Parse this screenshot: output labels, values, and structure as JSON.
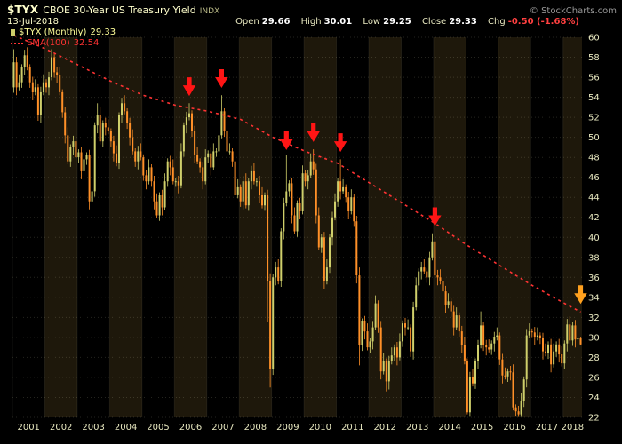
{
  "header": {
    "symbol": "$TYX",
    "name": "CBOE 30-Year US Treasury Yield",
    "exchange": "INDX",
    "date": "13-Jul-2018",
    "copyright": "© StockCharts.com",
    "quote": {
      "open_label": "Open",
      "open": "29.66",
      "high_label": "High",
      "high": "30.01",
      "low_label": "Low",
      "low": "29.25",
      "close_label": "Close",
      "close": "29.33",
      "chg_label": "Chg",
      "chg": "-0.50 (-1.68%)"
    }
  },
  "legend": {
    "series_label": "$TYX (Monthly)",
    "series_value": "29.33",
    "ema_label": "EMA(100)",
    "ema_value": "32.54"
  },
  "colors": {
    "background": "#000000",
    "band": "#1e180b",
    "grid": "rgba(232,232,192,0.16)",
    "candle_up": "#cfcf6b",
    "candle_down": "#ff9028",
    "ema": "#ff3333",
    "arrow_red": "#ff1515",
    "arrow_orange": "#ffa01e",
    "axis_text": "#e8e8c0"
  },
  "chart_data": {
    "type": "candlestick",
    "title": "$TYX CBOE 30-Year US Treasury Yield INDX",
    "timeframe": "Monthly",
    "legend_entries": [
      "$TYX (Monthly) 29.33",
      "EMA(100) 32.54"
    ],
    "ylim": [
      22,
      60
    ],
    "ytick_step": 2,
    "x_years": [
      2001,
      2002,
      2003,
      2004,
      2005,
      2006,
      2007,
      2008,
      2009,
      2010,
      2011,
      2012,
      2013,
      2014,
      2015,
      2016,
      2017,
      2018
    ],
    "first_open": 55.0,
    "monthly_closes": [
      {
        "year": 2001,
        "closes": [
          57.5,
          55.0,
          55.5,
          57.0,
          58.2,
          57.0,
          55.5,
          54.5,
          55.0,
          52.2,
          54.5,
          55.5
        ]
      },
      {
        "year": 2002,
        "closes": [
          55.0,
          56.0,
          58.0,
          56.5,
          56.2,
          54.5,
          52.5,
          50.2,
          47.6,
          49.0,
          49.6,
          48.0
        ]
      },
      {
        "year": 2003,
        "closes": [
          48.5,
          46.6,
          47.8,
          48.2,
          43.6,
          44.6,
          51.2,
          52.2,
          49.6,
          51.4,
          51.0,
          50.6
        ]
      },
      {
        "year": 2004,
        "closes": [
          49.6,
          48.4,
          47.4,
          52.2,
          53.4,
          52.6,
          51.4,
          50.0,
          48.6,
          47.6,
          48.6,
          48.0
        ]
      },
      {
        "year": 2005,
        "closes": [
          46.2,
          45.6,
          47.0,
          45.6,
          43.6,
          42.2,
          44.2,
          43.0,
          45.6,
          47.6,
          47.0,
          45.6
        ]
      },
      {
        "year": 2006,
        "closes": [
          45.6,
          45.2,
          48.6,
          51.2,
          52.0,
          52.4,
          50.6,
          48.2,
          47.6,
          47.0,
          45.6,
          48.0
        ]
      },
      {
        "year": 2007,
        "closes": [
          48.4,
          47.0,
          48.6,
          48.6,
          50.2,
          52.6,
          50.6,
          48.6,
          48.6,
          47.6,
          44.2,
          45.0
        ]
      },
      {
        "year": 2008,
        "closes": [
          43.6,
          45.6,
          43.2,
          45.6,
          46.6,
          45.6,
          45.6,
          44.2,
          43.2,
          44.2,
          35.6,
          26.8
        ]
      },
      {
        "year": 2009,
        "closes": [
          36.0,
          37.0,
          35.6,
          40.6,
          43.4,
          44.6,
          45.4,
          42.2,
          40.6,
          43.4,
          42.6,
          46.4
        ]
      },
      {
        "year": 2010,
        "closes": [
          45.6,
          46.2,
          47.6,
          46.8,
          42.2,
          39.0,
          40.0,
          35.6,
          37.0,
          40.0,
          42.0,
          43.6
        ]
      },
      {
        "year": 2011,
        "closes": [
          45.6,
          44.6,
          45.0,
          44.0,
          42.6,
          44.0,
          41.6,
          36.2,
          29.2,
          31.6,
          30.6,
          29.0
        ]
      },
      {
        "year": 2012,
        "closes": [
          29.6,
          31.0,
          33.4,
          31.0,
          26.6,
          27.6,
          25.6,
          27.6,
          28.2,
          29.0,
          28.0,
          29.6
        ]
      },
      {
        "year": 2013,
        "closes": [
          31.4,
          31.0,
          31.0,
          28.6,
          33.0,
          35.2,
          36.6,
          37.0,
          36.6,
          36.0,
          38.0,
          39.6
        ]
      },
      {
        "year": 2014,
        "closes": [
          36.2,
          36.0,
          35.6,
          34.6,
          33.2,
          33.6,
          32.6,
          31.0,
          32.2,
          30.6,
          29.2,
          27.6
        ]
      },
      {
        "year": 2015,
        "closes": [
          22.5,
          26.0,
          25.4,
          27.6,
          29.2,
          31.2,
          29.2,
          29.0,
          28.8,
          29.4,
          30.0,
          30.2
        ]
      },
      {
        "year": 2016,
        "closes": [
          27.8,
          26.2,
          26.1,
          26.6,
          26.5,
          23.0,
          22.6,
          22.3,
          23.6,
          25.8,
          30.2,
          30.6
        ]
      },
      {
        "year": 2017,
        "closes": [
          30.5,
          30.0,
          30.2,
          29.9,
          28.6,
          28.4,
          29.3,
          27.3,
          28.6,
          29.3,
          28.3,
          27.4
        ]
      },
      {
        "year": 2018,
        "closes": [
          29.4,
          31.3,
          29.7,
          31.2,
          29.8,
          29.9,
          29.3
        ]
      }
    ],
    "wick_overrides": {
      "0": {
        "h": 58.8
      },
      "29": {
        "l": 41.2
      },
      "31": {
        "h": 53.4
      },
      "65": {
        "h": 53.4
      },
      "77": {
        "h": 54.2
      },
      "94": {
        "l": 31.5
      },
      "95": {
        "l": 25.0
      },
      "101": {
        "h": 48.2
      },
      "111": {
        "h": 48.8
      },
      "121": {
        "h": 47.8
      },
      "128": {
        "l": 27.2
      },
      "138": {
        "l": 24.6
      },
      "156": {
        "h": 40.2
      },
      "168": {
        "l": 22.3
      },
      "173": {
        "h": 32.6
      },
      "186": {
        "l": 22.1
      },
      "210": {
        "h": 30.0,
        "l": 29.2
      }
    },
    "ema_points": [
      [
        0,
        60.2
      ],
      [
        12,
        58.8
      ],
      [
        24,
        57.2
      ],
      [
        36,
        55.6
      ],
      [
        48,
        54.2
      ],
      [
        60,
        53.2
      ],
      [
        72,
        52.6
      ],
      [
        84,
        51.8
      ],
      [
        96,
        50.0
      ],
      [
        108,
        48.6
      ],
      [
        120,
        47.4
      ],
      [
        132,
        45.4
      ],
      [
        144,
        43.4
      ],
      [
        156,
        41.4
      ],
      [
        168,
        39.2
      ],
      [
        180,
        37.2
      ],
      [
        192,
        35.2
      ],
      [
        204,
        33.4
      ],
      [
        210,
        32.54
      ]
    ],
    "ema_last_value": 32.54,
    "arrows": [
      {
        "month": 65,
        "value": 56.0,
        "color": "red"
      },
      {
        "month": 77,
        "value": 56.8,
        "color": "red"
      },
      {
        "month": 101,
        "value": 50.6,
        "color": "red"
      },
      {
        "month": 111,
        "value": 51.4,
        "color": "red"
      },
      {
        "month": 121,
        "value": 50.4,
        "color": "red"
      },
      {
        "month": 156,
        "value": 43.0,
        "color": "red"
      },
      {
        "month": 210,
        "value": 35.2,
        "color": "orange"
      }
    ]
  }
}
